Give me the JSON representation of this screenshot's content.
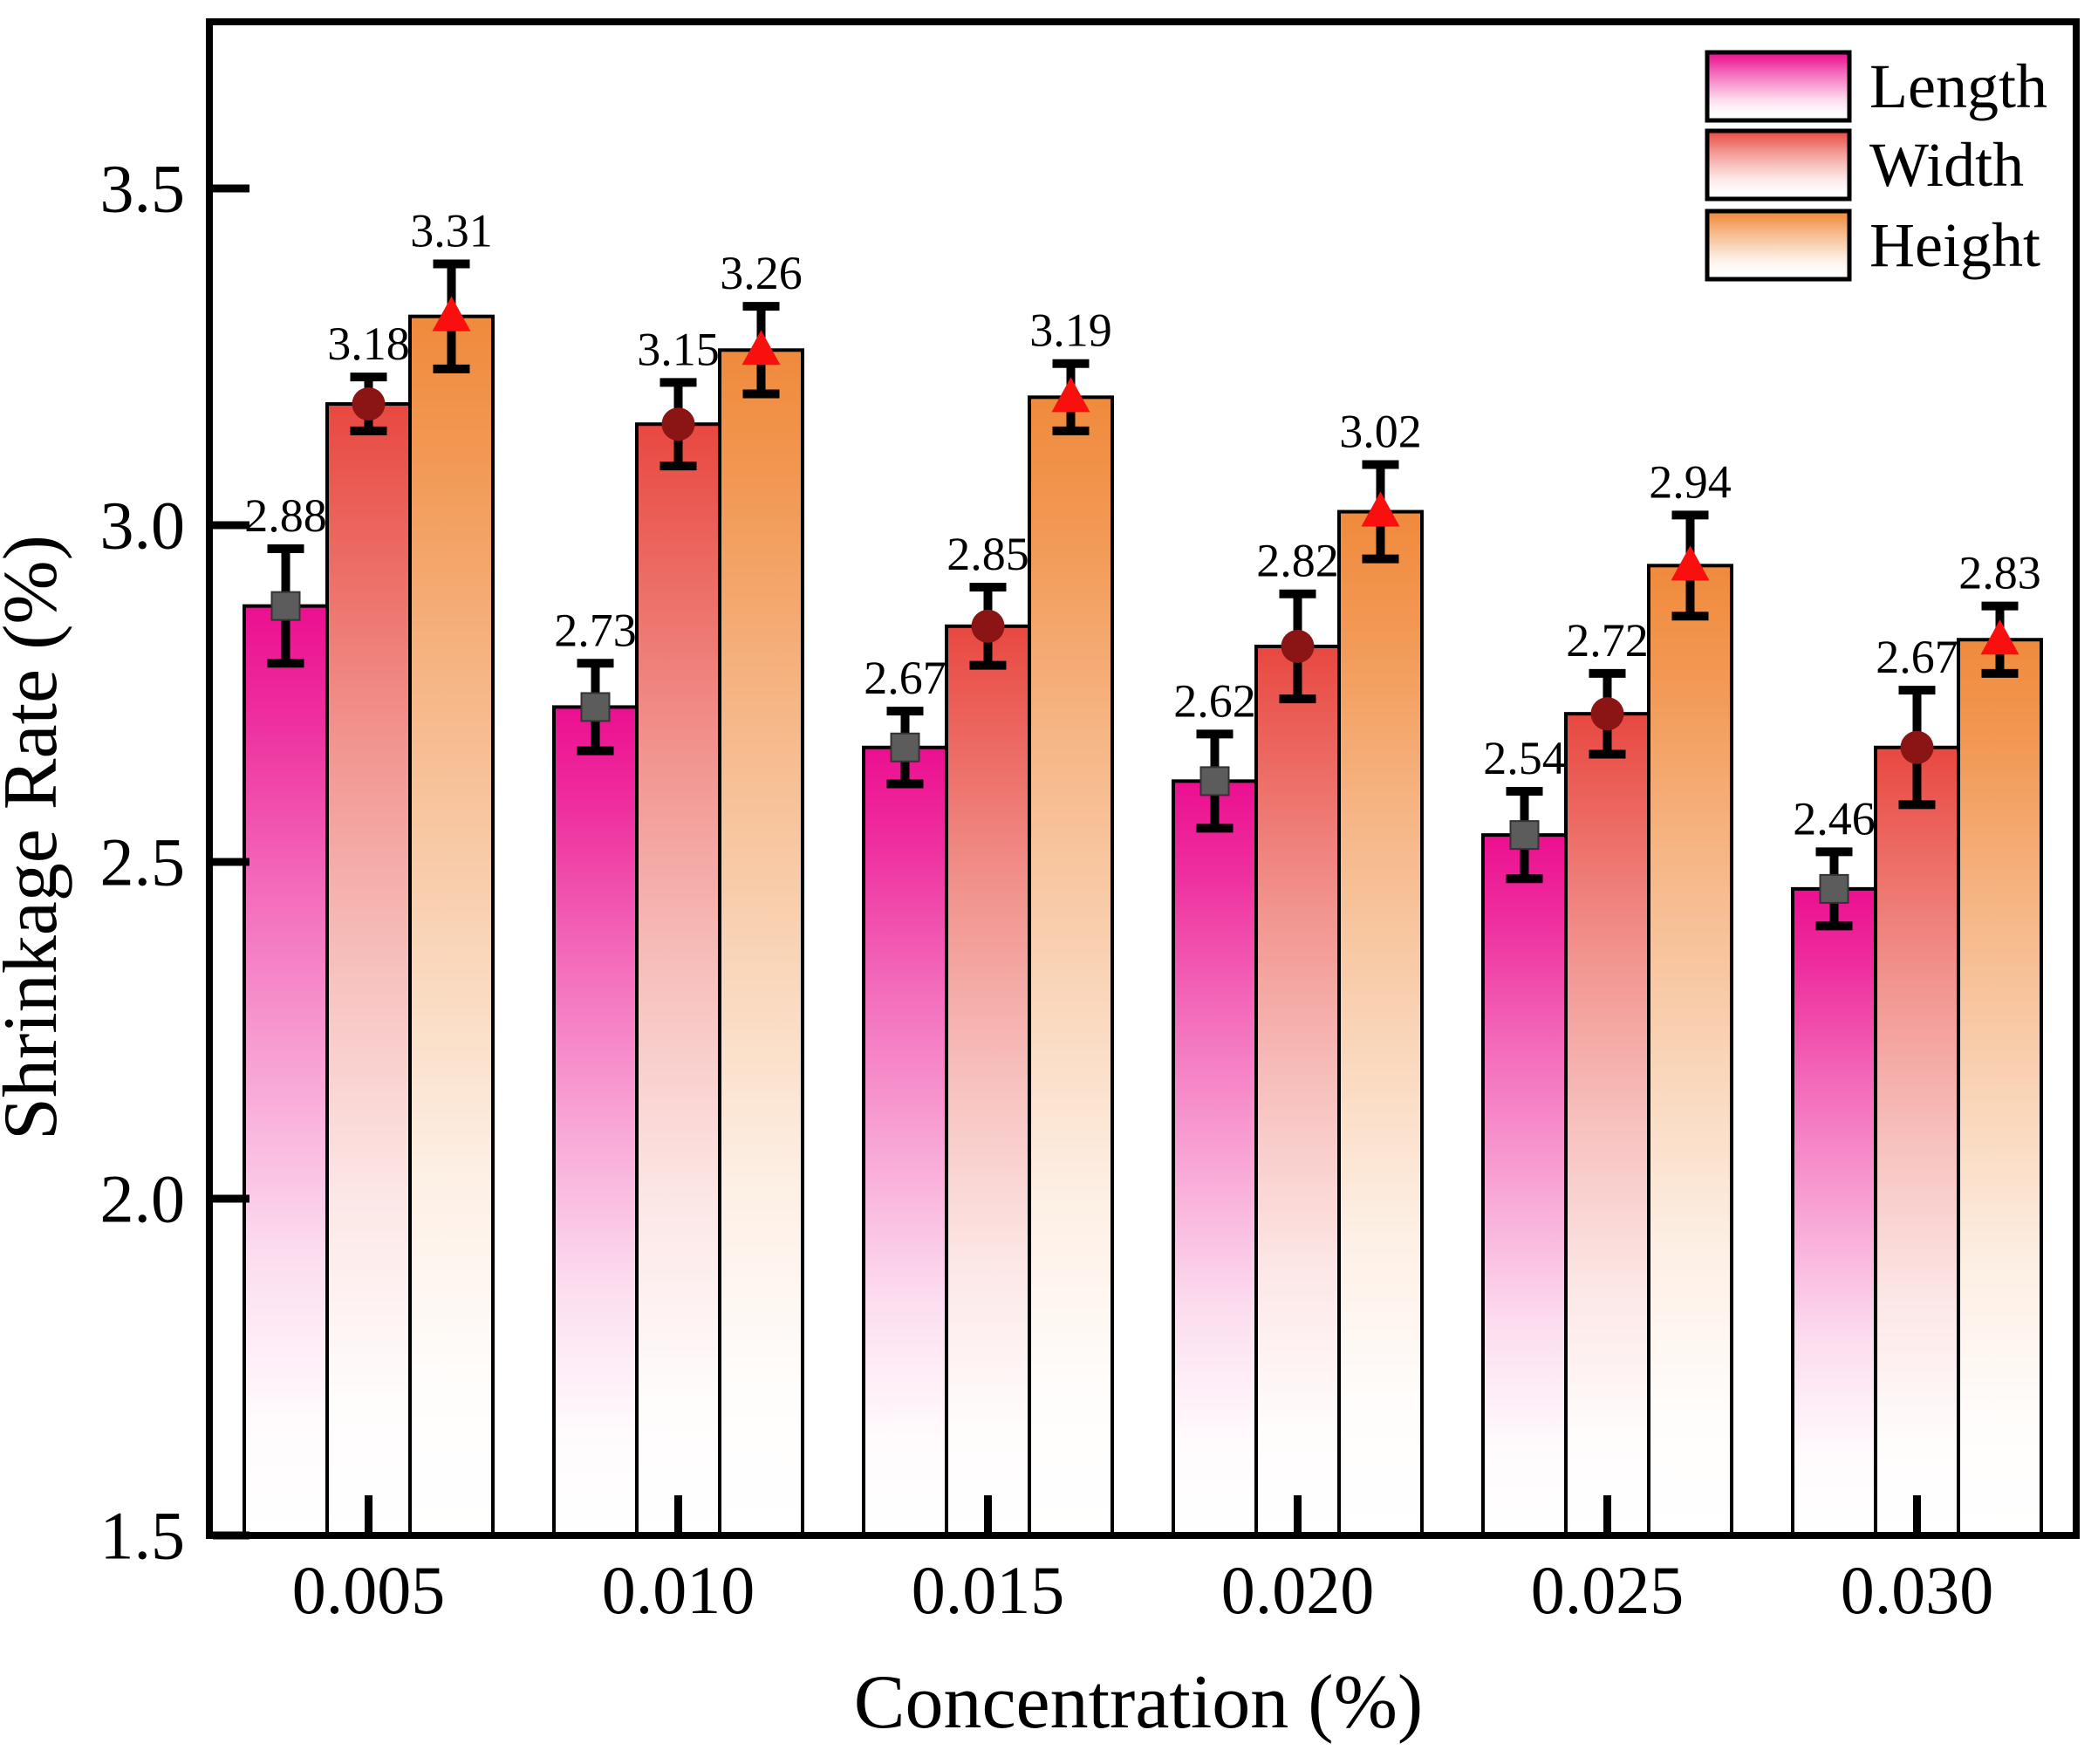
{
  "chart_data": {
    "type": "bar",
    "title": "",
    "xlabel": "Concentration (%)",
    "ylabel": "Shrinkage Rate (%)",
    "categories": [
      "0.005",
      "0.010",
      "0.015",
      "0.020",
      "0.025",
      "0.030"
    ],
    "series": [
      {
        "name": "Length",
        "marker": "square",
        "marker_color": "#5c5c5c",
        "bar_top_color": "#ec0f90",
        "values": [
          2.88,
          2.73,
          2.67,
          2.62,
          2.54,
          2.46
        ],
        "errors": [
          0.085,
          0.065,
          0.054,
          0.07,
          0.065,
          0.055
        ]
      },
      {
        "name": "Width",
        "marker": "circle",
        "marker_color": "#8b1414",
        "bar_top_color": "#e84840",
        "values": [
          3.18,
          3.15,
          2.85,
          2.82,
          2.72,
          2.67
        ],
        "errors": [
          0.04,
          0.062,
          0.058,
          0.078,
          0.06,
          0.085
        ]
      },
      {
        "name": "Height",
        "marker": "triangle",
        "marker_color": "#fa0f0f",
        "bar_top_color": "#f08a3c",
        "values": [
          3.31,
          3.26,
          3.19,
          3.02,
          2.94,
          2.83
        ],
        "errors": [
          0.078,
          0.065,
          0.05,
          0.07,
          0.075,
          0.05
        ]
      }
    ],
    "y_ticks": [
      "1.5",
      "2.0",
      "2.5",
      "3.0",
      "3.5"
    ],
    "ylim": [
      1.5,
      3.747
    ],
    "legend_position": "top-right-inside",
    "grid": false,
    "value_label_format": "2-decimals"
  }
}
